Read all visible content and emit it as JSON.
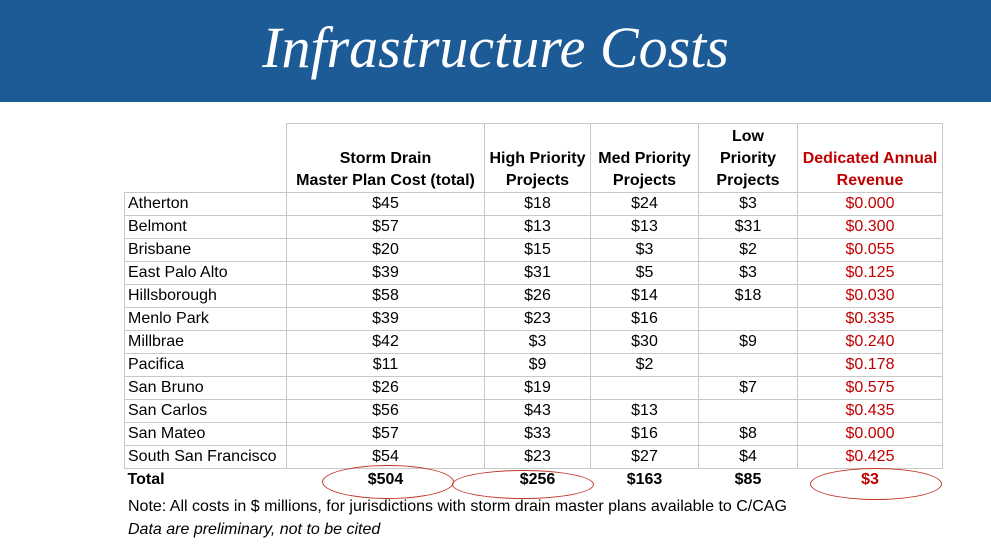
{
  "slide": {
    "title": "Infrastructure Costs"
  },
  "table": {
    "headers": [
      "",
      "Storm Drain Master Plan Cost (total)",
      "High Priority Projects",
      "Med Priority Projects",
      "Low Priority Projects",
      "Dedicated Annual Revenue"
    ],
    "header_lines": [
      [],
      [
        "Storm Drain",
        "Master Plan Cost (total)"
      ],
      [
        "High Priority",
        "Projects"
      ],
      [
        "Med Priority",
        "Projects"
      ],
      [
        "Low Priority",
        "Projects"
      ],
      [
        "Dedicated Annual",
        "Revenue"
      ]
    ],
    "rows": [
      [
        "Atherton",
        "$45",
        "$18",
        "$24",
        "$3",
        "$0.000"
      ],
      [
        "Belmont",
        "$57",
        "$13",
        "$13",
        "$31",
        "$0.300"
      ],
      [
        "Brisbane",
        "$20",
        "$15",
        "$3",
        "$2",
        "$0.055"
      ],
      [
        "East Palo Alto",
        "$39",
        "$31",
        "$5",
        "$3",
        "$0.125"
      ],
      [
        "Hillsborough",
        "$58",
        "$26",
        "$14",
        "$18",
        "$0.030"
      ],
      [
        "Menlo Park",
        "$39",
        "$23",
        "$16",
        "",
        "$0.335"
      ],
      [
        "Millbrae",
        "$42",
        "$3",
        "$30",
        "$9",
        "$0.240"
      ],
      [
        "Pacifica",
        "$11",
        "$9",
        "$2",
        "",
        "$0.178"
      ],
      [
        "San Bruno",
        "$26",
        "$19",
        "",
        "$7",
        "$0.575"
      ],
      [
        "San Carlos",
        "$56",
        "$43",
        "$13",
        "",
        "$0.435"
      ],
      [
        "San Mateo",
        "$57",
        "$33",
        "$16",
        "$8",
        "$0.000"
      ],
      [
        "South San Francisco",
        "$54",
        "$23",
        "$27",
        "$4",
        "$0.425"
      ]
    ],
    "total": [
      "Total",
      "$504",
      "$256",
      "$163",
      "$85",
      "$3"
    ]
  },
  "notes": {
    "line1": "Note: All costs in $ millions, for jurisdictions with storm drain master plans available to C/CAG",
    "line2": "Data are preliminary, not to be cited"
  },
  "colors": {
    "banner": "#1d5b97",
    "revenue_text": "#c00000",
    "highlight_ellipse": "#c0392b"
  }
}
